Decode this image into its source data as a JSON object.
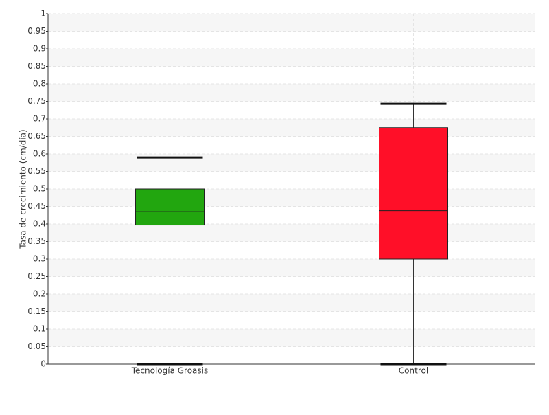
{
  "chart_data": {
    "type": "box",
    "y_label": "Tasa de crecimiento (cm/día)",
    "categories": [
      "Tecnología Groasis",
      "Control"
    ],
    "boxes": [
      {
        "min": 0,
        "q1": 0.397,
        "median": 0.435,
        "q3": 0.5,
        "max": 0.59,
        "color": "#22a60f"
      },
      {
        "min": 0,
        "q1": 0.3,
        "median": 0.438,
        "q3": 0.675,
        "max": 0.743,
        "color": "#ff0f28"
      }
    ],
    "ylim": [
      0,
      1
    ],
    "yticks": [
      0,
      0.05,
      0.1,
      0.15,
      0.2,
      0.25,
      0.3,
      0.35,
      0.4,
      0.45,
      0.5,
      0.55,
      0.6,
      0.65,
      0.7,
      0.75,
      0.8,
      0.85,
      0.9,
      0.95,
      1
    ],
    "grid": true
  }
}
